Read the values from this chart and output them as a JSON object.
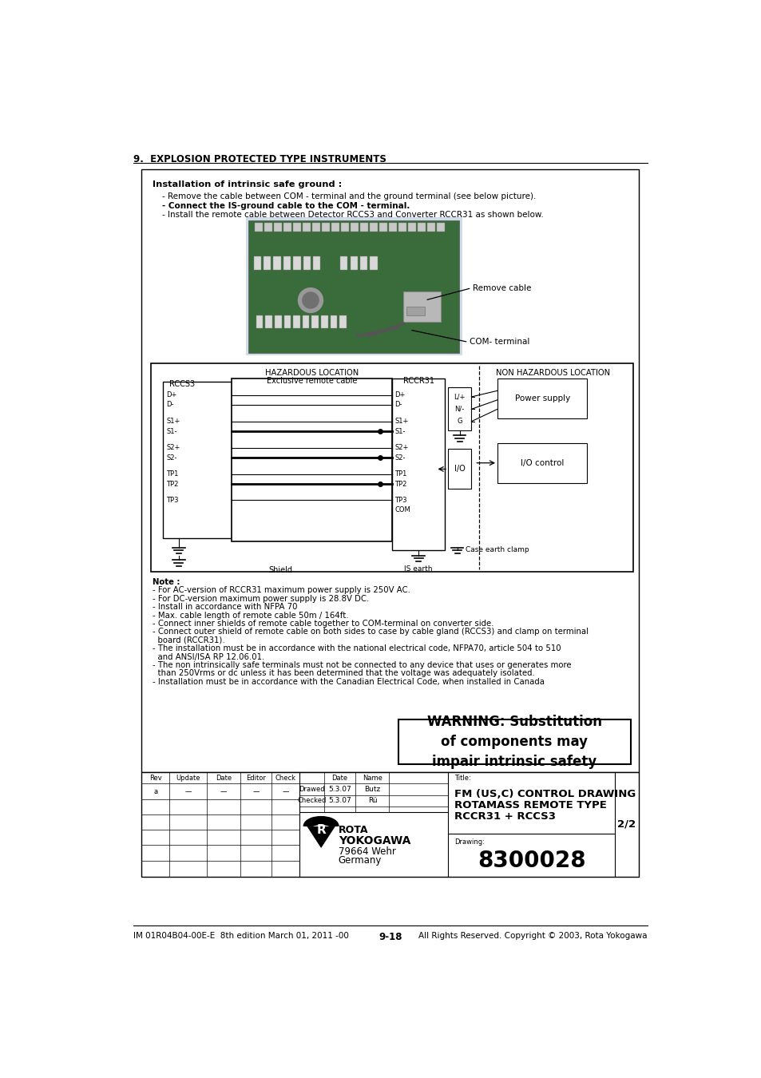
{
  "page_header": "9.  EXPLOSION PROTECTED TYPE INSTRUMENTS",
  "page_footer_left": "IM 01R04B04-00E-E  8th edition March 01, 2011 -00",
  "page_footer_center": "9-18",
  "page_footer_right": "All Rights Reserved. Copyright © 2003, Rota Yokogawa",
  "main_box_title": "Installation of intrinsic safe ground :",
  "bullet1": "- Remove the cable between COM - terminal and the ground terminal (see below picture).",
  "bullet2": "- Connect the IS-ground cable to the COM - terminal.",
  "bullet3": "- Install the remote cable between Detector RCCS3 and Converter RCCR31 as shown below.",
  "annotation1": "Remove cable",
  "annotation2": "COM- terminal",
  "diag_title": "HAZARDOUS LOCATION",
  "diag_title2": "NON HAZARDOUS LOCATION",
  "rccs3_label": "RCCS3",
  "rccr31_label": "RCCR31",
  "exclusive_cable": "Exclusive remote cable",
  "shield_label": "Shield",
  "is_earth_label": "IS earth",
  "case_earth": "Case earth clamp",
  "power_supply": "Power supply",
  "io_control": "I/O control",
  "io_label": "I/O",
  "lng_label": "L/+\nN/-\nG",
  "note_lines": [
    "Note :",
    "- For AC-version of RCCR31 maximum power supply is 250V AC.",
    "- For DC-version maximum power supply is 28.8V DC.",
    "- Install in accordance with NFPA 70",
    "- Max. cable length of remote cable 50m / 164ft.",
    "- Connect inner shields of remote cable together to COM-terminal on converter side.",
    "- Connect outer shield of remote cable on both sides to case by cable gland (RCCS3) and clamp on terminal",
    "  board (RCCR31).",
    "- The installation must be in accordance with the national electrical code, NFPA70, article 504 to 510",
    "  and ANSI/ISA RP 12.06.01.",
    "- The non intrinsically safe terminals must not be connected to any device that uses or generates more",
    "  than 250Vrms or dc unless it has been determined that the voltage was adequately isolated.",
    "- Installation must be in accordance with the Canadian Electrical Code, when installed in Canada"
  ],
  "warning_text": "WARNING: Substitution\nof components may\nimpair intrinsic safety",
  "title_block_title1": "FM (US,C) CONTROL DRAWING",
  "title_block_title2": "ROTAMASS REMOTE TYPE",
  "title_block_title3": "RCCR31 + RCCS3",
  "drawing_num": "8300028",
  "page_num": "2/2",
  "drawn_date": "5.3.07",
  "drawn_name": "Butz",
  "checked_date": "5.3.07",
  "checked_name": "Rü",
  "company": "YOKOGAWA",
  "address1": "79664 Wehr",
  "address2": "Germany",
  "bg_color": "#ffffff"
}
